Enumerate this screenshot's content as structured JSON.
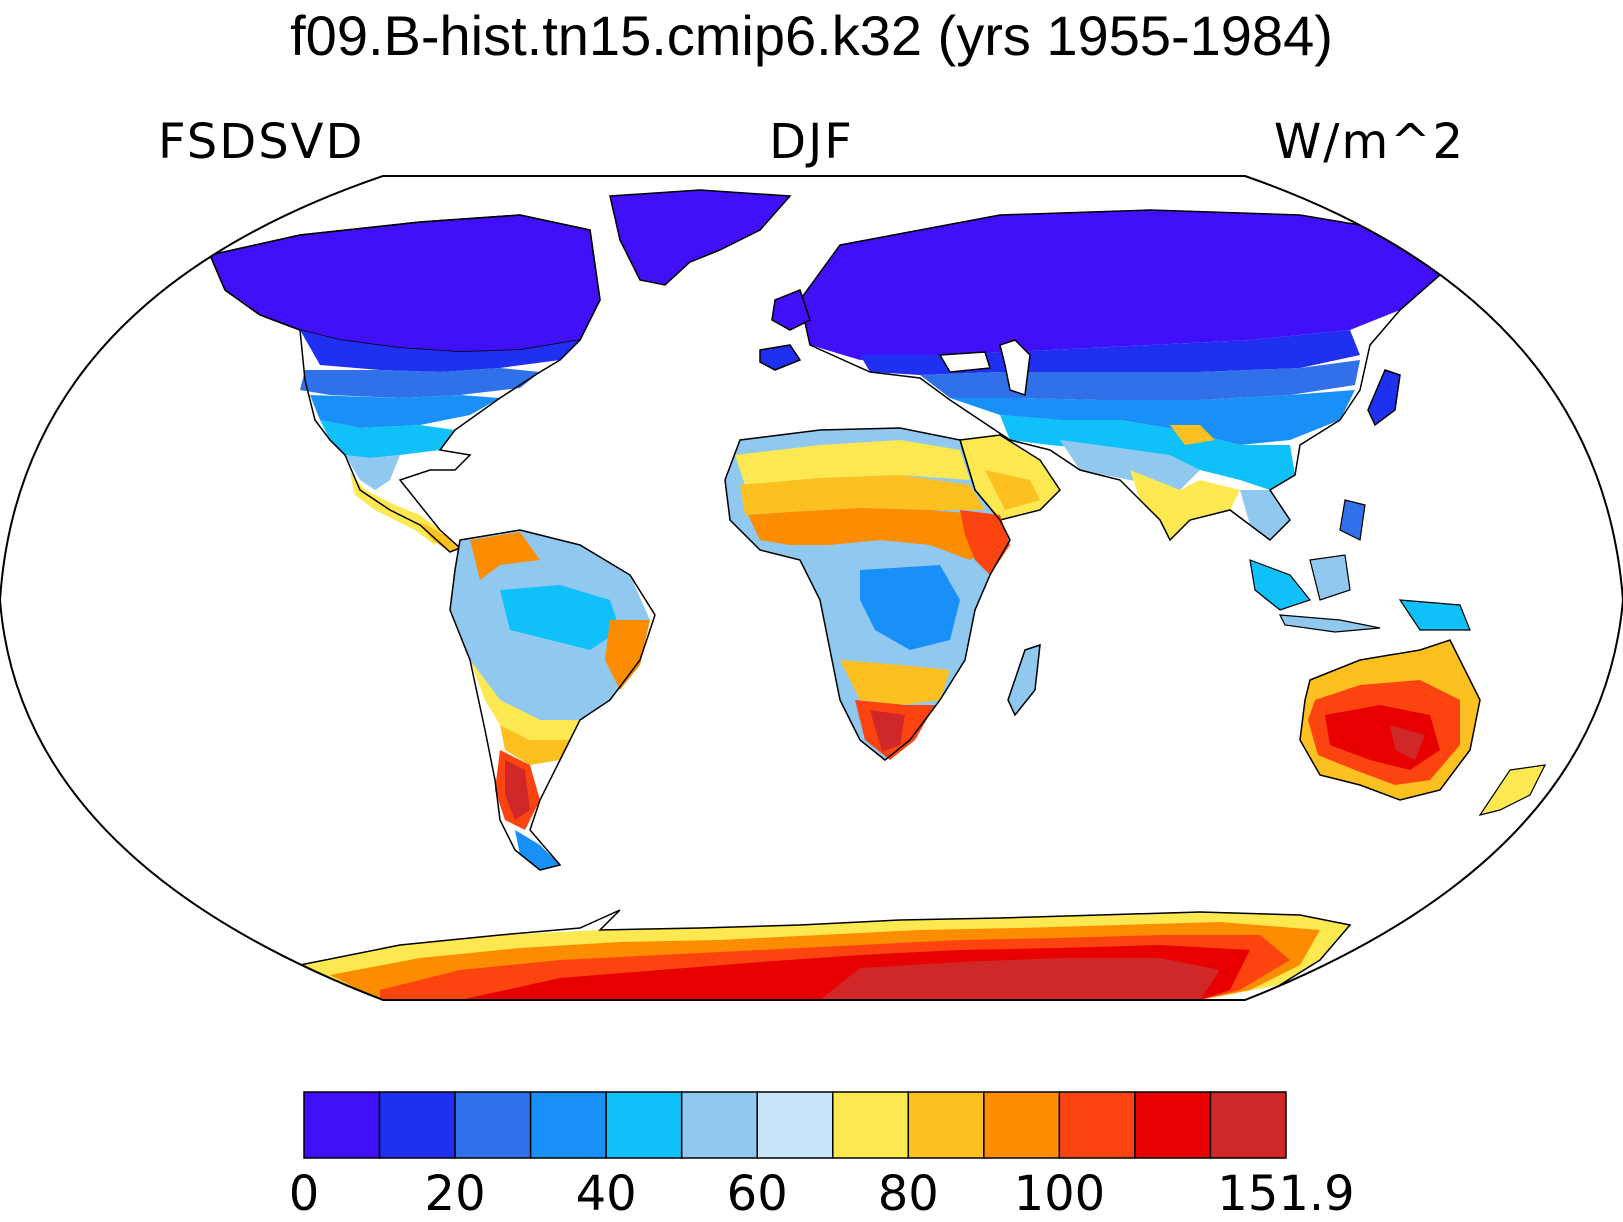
{
  "title": "f09.B-hist.tn15.cmip6.k32 (yrs 1955-1984)",
  "left_label": "FSDSVD",
  "center_label": "DJF",
  "right_label": "W/m^2",
  "colorbar": {
    "colors": [
      "#4010F8",
      "#2030F0",
      "#3070E8",
      "#1890F8",
      "#10C0F8",
      "#90C8F0",
      "#C8E4F8",
      "#FCE850",
      "#FCC020",
      "#FC8C00",
      "#FC4410",
      "#E80000",
      "#D02828"
    ],
    "tick_labels": [
      "0",
      "20",
      "40",
      "60",
      "80",
      "100",
      "151.9"
    ],
    "tick_boundary_index": [
      0,
      2,
      4,
      6,
      8,
      10,
      13
    ]
  }
}
